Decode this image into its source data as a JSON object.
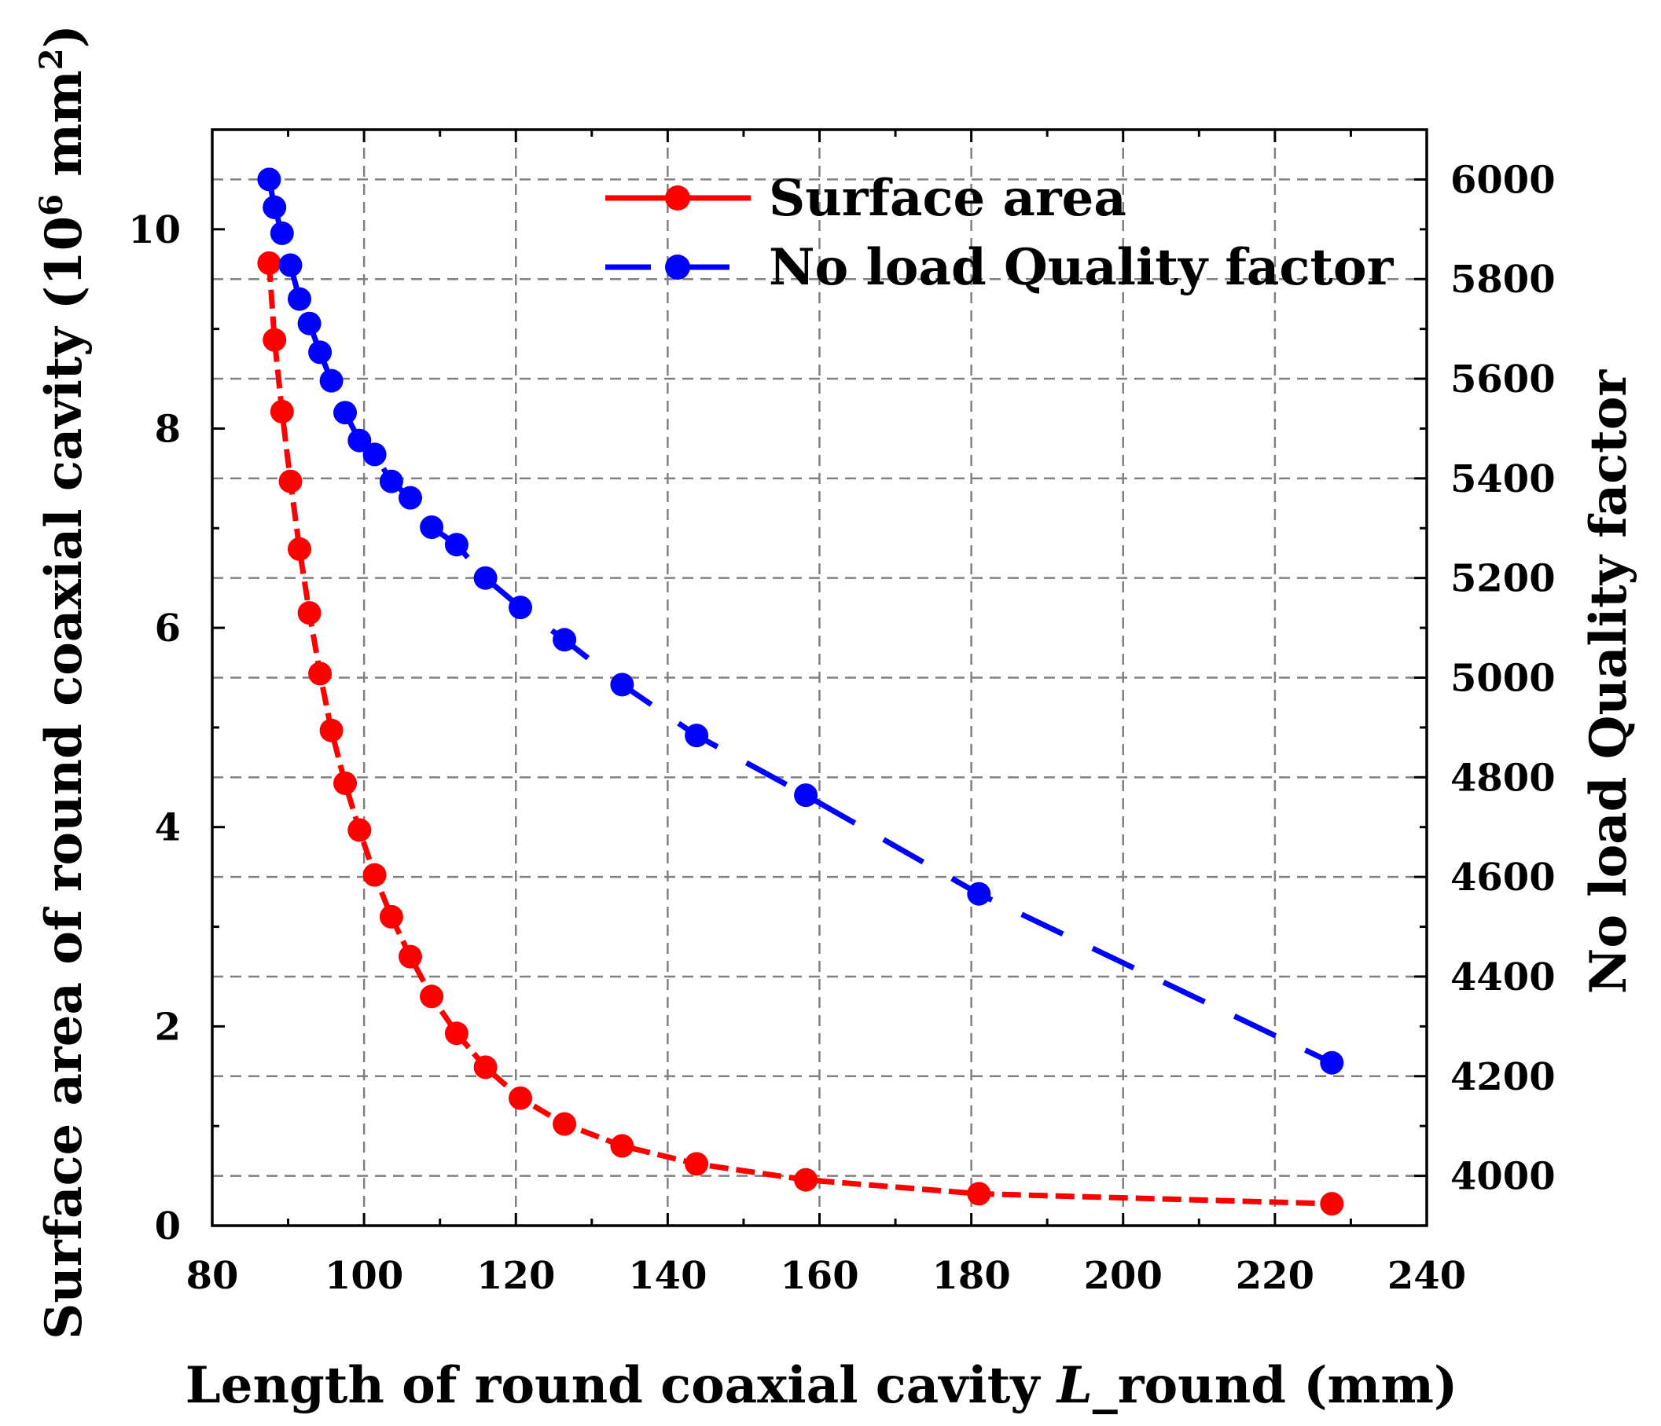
{
  "chart_data": {
    "type": "line",
    "x_axis": {
      "label_prefix": "Length of round coaxial cavity ",
      "label_italic": "L",
      "label_suffix": "_round (mm)",
      "range": [
        80,
        240
      ],
      "ticks": [
        80,
        100,
        120,
        140,
        160,
        180,
        200,
        220,
        240
      ],
      "tick_labels": [
        "80",
        "100",
        "120",
        "140",
        "160",
        "180",
        "200",
        "220",
        "240"
      ]
    },
    "y_axis_left": {
      "label_prefix": "Surface area of round coaxial cavity (10",
      "label_sup": "6",
      "label_mid": " mm",
      "label_sup2": "2",
      "label_suffix": ")",
      "range": [
        0,
        11
      ],
      "ticks": [
        0,
        2,
        4,
        6,
        8,
        10
      ],
      "tick_labels": [
        "0",
        "2",
        "4",
        "6",
        "8",
        "10"
      ]
    },
    "y_axis_right": {
      "label": "No load Quality factor",
      "range": [
        3900,
        6100
      ],
      "ticks": [
        4000,
        4200,
        4400,
        4600,
        4800,
        5000,
        5200,
        5400,
        5600,
        5800,
        6000
      ],
      "tick_labels": [
        "4000",
        "4200",
        "4400",
        "4600",
        "4800",
        "5000",
        "5200",
        "5400",
        "5600",
        "5800",
        "6000"
      ]
    },
    "grid": true,
    "legend_position": "top-center",
    "series": [
      {
        "name": "Surface area",
        "axis": "left",
        "color": "#ff0000",
        "line_style": "short-dash",
        "x": [
          87.5,
          88.2,
          89.2,
          90.3,
          91.5,
          92.8,
          94.2,
          95.7,
          97.5,
          99.4,
          101.4,
          103.6,
          106.1,
          108.9,
          112.2,
          116.0,
          120.6,
          126.4,
          134.0,
          143.8,
          158.2,
          181.0,
          227.5
        ],
        "values": [
          9.66,
          8.89,
          8.17,
          7.47,
          6.79,
          6.15,
          5.54,
          4.97,
          4.44,
          3.97,
          3.52,
          3.1,
          2.7,
          2.3,
          1.93,
          1.59,
          1.28,
          1.02,
          0.8,
          0.62,
          0.46,
          0.32,
          0.22
        ]
      },
      {
        "name": "No load Quality factor",
        "axis": "right",
        "color": "#0000ff",
        "line_style": "long-dash",
        "x": [
          87.5,
          88.2,
          89.2,
          90.3,
          91.5,
          92.8,
          94.2,
          95.7,
          97.5,
          99.4,
          101.4,
          103.6,
          106.1,
          108.9,
          112.2,
          116.0,
          120.6,
          126.4,
          134.0,
          143.8,
          158.2,
          181.0,
          227.5
        ],
        "values": [
          6000,
          5944,
          5892,
          5828,
          5760,
          5711,
          5653,
          5596,
          5532,
          5476,
          5448,
          5394,
          5361,
          5302,
          5267,
          5200,
          5141,
          5076,
          4986,
          4884,
          4764,
          4566,
          4227
        ]
      }
    ]
  }
}
